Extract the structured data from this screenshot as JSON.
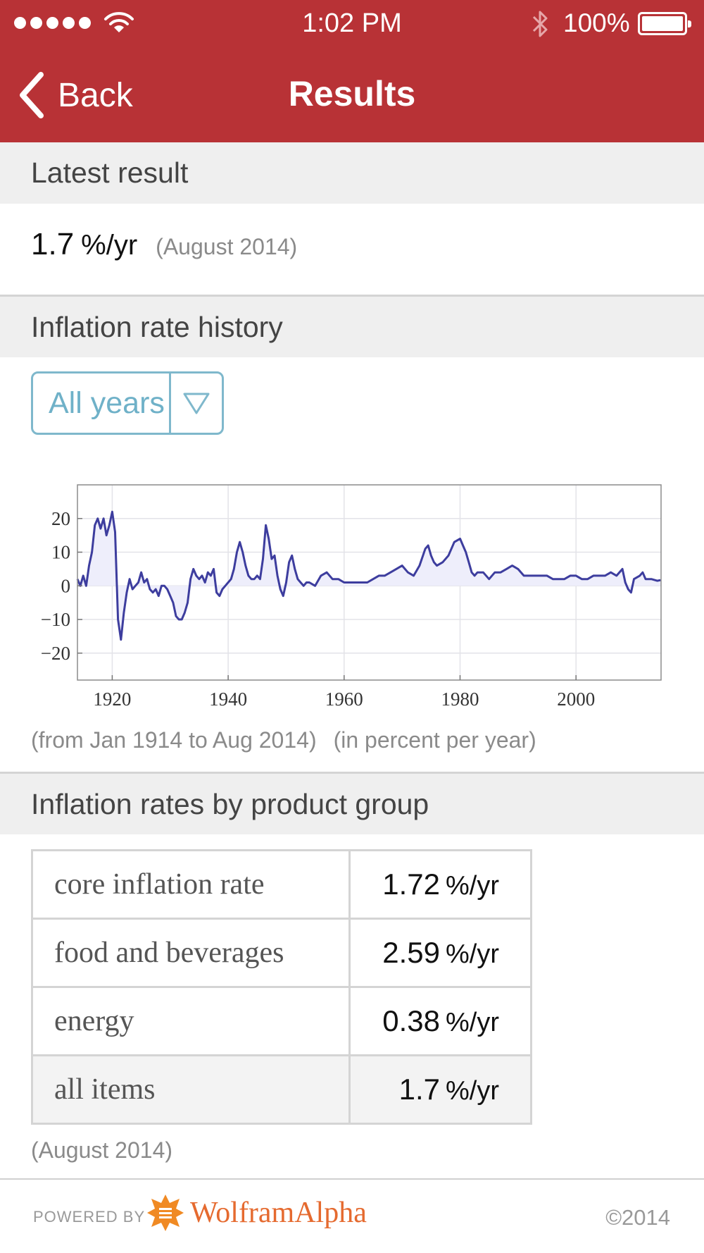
{
  "status_bar": {
    "time": "1:02 PM",
    "battery": "100%"
  },
  "nav": {
    "back_label": "Back",
    "title": "Results"
  },
  "latest": {
    "heading": "Latest result",
    "value": "1.7",
    "unit": "%/yr",
    "date": "(August 2014)"
  },
  "history": {
    "heading": "Inflation rate history",
    "range_selected": "All years",
    "note_range": "(from Jan 1914 to Aug 2014)",
    "note_units": "(in percent per year)"
  },
  "chart_data": {
    "type": "area",
    "title": "",
    "xlabel": "",
    "ylabel": "",
    "x_ticks": [
      "1920",
      "1940",
      "1960",
      "1980",
      "2000"
    ],
    "y_ticks": [
      "20",
      "10",
      "0",
      "−10",
      "−20"
    ],
    "xlim": [
      1914,
      2014.67
    ],
    "ylim": [
      -28,
      30
    ],
    "grid": true,
    "color": "#3d3d9e",
    "fill": "#eeeefb",
    "series": [
      {
        "x": [
          1914,
          1914.5,
          1915,
          1915.5,
          1916,
          1916.5,
          1917,
          1917.5,
          1918,
          1918.5,
          1919,
          1919.5,
          1920,
          1920.5,
          1921,
          1921.5,
          1922,
          1922.5,
          1923,
          1923.5,
          1924,
          1924.5,
          1925,
          1925.5,
          1926,
          1926.5,
          1927,
          1927.5,
          1928,
          1928.5,
          1929,
          1929.5,
          1930,
          1930.5,
          1931,
          1931.5,
          1932,
          1932.5,
          1933,
          1933.5,
          1934,
          1934.5,
          1935,
          1935.5,
          1936,
          1936.5,
          1937,
          1937.5,
          1938,
          1938.5,
          1939,
          1939.5,
          1940,
          1940.5,
          1941,
          1941.5,
          1942,
          1942.5,
          1943,
          1943.5,
          1944,
          1944.5,
          1945,
          1945.5,
          1946,
          1946.5,
          1947,
          1947.5,
          1948,
          1948.5,
          1949,
          1949.5,
          1950,
          1950.5,
          1951,
          1951.5,
          1952,
          1952.5,
          1953,
          1953.5,
          1954,
          1955,
          1956,
          1957,
          1958,
          1959,
          1960,
          1961,
          1962,
          1963,
          1964,
          1965,
          1966,
          1967,
          1968,
          1969,
          1970,
          1971,
          1972,
          1973,
          1974,
          1974.5,
          1975,
          1975.5,
          1976,
          1977,
          1978,
          1979,
          1980,
          1980.5,
          1981,
          1981.5,
          1982,
          1982.5,
          1983,
          1984,
          1985,
          1986,
          1987,
          1988,
          1989,
          1990,
          1991,
          1992,
          1993,
          1994,
          1995,
          1996,
          1997,
          1998,
          1999,
          2000,
          2001,
          2002,
          2003,
          2004,
          2005,
          2006,
          2007,
          2008,
          2008.5,
          2009,
          2009.5,
          2010,
          2011,
          2011.5,
          2012,
          2013,
          2014,
          2014.6
        ],
        "y": [
          2,
          0,
          3,
          0,
          6,
          10,
          18,
          20,
          17,
          20,
          15,
          18,
          22,
          16,
          -10,
          -16,
          -8,
          -2,
          2,
          -1,
          0,
          1,
          4,
          1,
          2,
          -1,
          -2,
          -1,
          -3,
          0,
          0,
          -1,
          -3,
          -5,
          -9,
          -10,
          -10,
          -8,
          -5,
          2,
          5,
          3,
          2,
          3,
          1,
          4,
          3,
          5,
          -2,
          -3,
          -1,
          0,
          1,
          2,
          5,
          10,
          13,
          10,
          6,
          3,
          2,
          2,
          3,
          2,
          8,
          18,
          14,
          8,
          9,
          3,
          -1,
          -3,
          1,
          7,
          9,
          5,
          2,
          1,
          0,
          1,
          1,
          0,
          3,
          4,
          2,
          2,
          1,
          1,
          1,
          1,
          1,
          2,
          3,
          3,
          4,
          5,
          6,
          4,
          3,
          6,
          11,
          12,
          9,
          7,
          6,
          7,
          9,
          13,
          14,
          12,
          10,
          7,
          4,
          3,
          4,
          4,
          2,
          4,
          4,
          5,
          6,
          5,
          3,
          3,
          3,
          3,
          3,
          2,
          2,
          2,
          3,
          3,
          2,
          2,
          3,
          3,
          3,
          4,
          3,
          5,
          1,
          -1,
          -2,
          2,
          3,
          4,
          2,
          2,
          1.5,
          1.7
        ]
      }
    ]
  },
  "product_groups": {
    "heading": "Inflation rates by product group",
    "rows": [
      {
        "name": "core inflation rate",
        "value": "1.72",
        "unit": "%/yr"
      },
      {
        "name": "food and beverages",
        "value": "2.59",
        "unit": "%/yr"
      },
      {
        "name": "energy",
        "value": "0.38",
        "unit": "%/yr"
      },
      {
        "name": "all items",
        "value": "1.7",
        "unit": "%/yr"
      }
    ],
    "date": "(August 2014)"
  },
  "footer": {
    "powered_by": "POWERED BY",
    "brand": "WolframAlpha",
    "copyright": "©2014"
  },
  "colors": {
    "header_red": "#b83236",
    "accent_blue": "#6fb1c8",
    "brand_orange": "#e56a2f"
  },
  "icons": {
    "signal": "signal-dots-icon",
    "wifi": "wifi-icon",
    "bluetooth": "bluetooth-icon",
    "battery": "battery-icon",
    "back": "chevron-left-icon",
    "dropdown": "triangle-down-icon",
    "logo": "wolfram-star-icon"
  }
}
